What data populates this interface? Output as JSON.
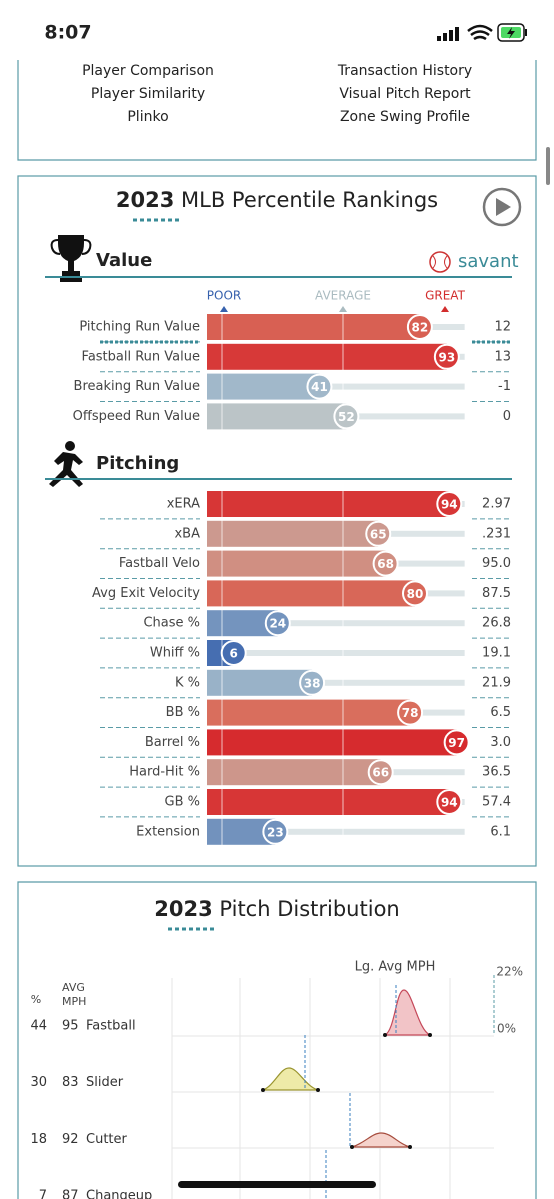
{
  "status_bar": {
    "time": "8:07"
  },
  "links": {
    "left": [
      "Player Comparison",
      "Player Similarity",
      "Plinko"
    ],
    "right": [
      "Transaction History",
      "Visual Pitch Report",
      "Zone Swing Profile"
    ]
  },
  "percentile": {
    "year": "2023",
    "title": "MLB Percentile Rankings",
    "brand": "savant",
    "scale_labels": {
      "poor": "POOR",
      "average": "AVERAGE",
      "great": "GREAT"
    },
    "sections": [
      {
        "name": "Value",
        "rows": [
          {
            "label": "Pitching Run Value",
            "percentile": 82,
            "value": "12"
          },
          {
            "label": "Fastball Run Value",
            "percentile": 93,
            "value": "13"
          },
          {
            "label": "Breaking Run Value",
            "percentile": 41,
            "value": "-1"
          },
          {
            "label": "Offspeed Run Value",
            "percentile": 52,
            "value": "0"
          }
        ]
      },
      {
        "name": "Pitching",
        "rows": [
          {
            "label": "xERA",
            "percentile": 94,
            "value": "2.97"
          },
          {
            "label": "xBA",
            "percentile": 65,
            "value": ".231"
          },
          {
            "label": "Fastball Velo",
            "percentile": 68,
            "value": "95.0"
          },
          {
            "label": "Avg Exit Velocity",
            "percentile": 80,
            "value": "87.5"
          },
          {
            "label": "Chase %",
            "percentile": 24,
            "value": "26.8"
          },
          {
            "label": "Whiff %",
            "percentile": 6,
            "value": "19.1"
          },
          {
            "label": "K %",
            "percentile": 38,
            "value": "21.9"
          },
          {
            "label": "BB %",
            "percentile": 78,
            "value": "6.5"
          },
          {
            "label": "Barrel %",
            "percentile": 97,
            "value": "3.0"
          },
          {
            "label": "Hard-Hit %",
            "percentile": 66,
            "value": "36.5"
          },
          {
            "label": "GB %",
            "percentile": 94,
            "value": "57.4"
          },
          {
            "label": "Extension",
            "percentile": 23,
            "value": "6.1"
          }
        ]
      }
    ]
  },
  "distribution": {
    "year": "2023",
    "title": "Pitch Distribution",
    "col_pct": "%",
    "col_mph": [
      "AVG",
      "MPH"
    ],
    "league_label": "Lg. Avg MPH",
    "max_label": "22%",
    "min_label": "0%",
    "pitches": [
      {
        "pct": 44,
        "mph": 95,
        "name": "Fastball"
      },
      {
        "pct": 30,
        "mph": 83,
        "name": "Slider"
      },
      {
        "pct": 18,
        "mph": 92,
        "name": "Cutter"
      },
      {
        "pct": 7,
        "mph": 87,
        "name": "Changeup"
      }
    ]
  }
}
